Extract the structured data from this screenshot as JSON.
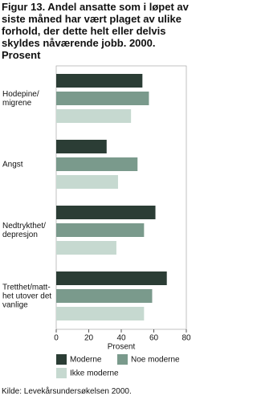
{
  "chart_data": {
    "type": "hbar",
    "title": "Figur 13. Andel ansatte som i løpet av siste måned har vært plaget av ulike forhold, der dette helt eller delvis skyldes nåværende jobb. 2000. Prosent",
    "categories": [
      "Hodepine/\nmigrene",
      "Angst",
      "Nedtrykthet/\ndepresjon",
      "Tretthet/matt-\nhet utover det\nvanlige"
    ],
    "series": [
      {
        "name": "Moderne",
        "color": "#2b3d35",
        "values": [
          53,
          31,
          61,
          68
        ]
      },
      {
        "name": "Noe moderne",
        "color": "#7a9a8c",
        "values": [
          57,
          50,
          54,
          59
        ]
      },
      {
        "name": "Ikke moderne",
        "color": "#c6d9d0",
        "values": [
          46,
          38,
          37,
          54
        ]
      }
    ],
    "xlabel": "Prosent",
    "xlim": [
      0,
      80
    ],
    "xticks": [
      0,
      20,
      40,
      60,
      80
    ],
    "source": "Kilde: Levekårsundersøkelsen 2000."
  }
}
